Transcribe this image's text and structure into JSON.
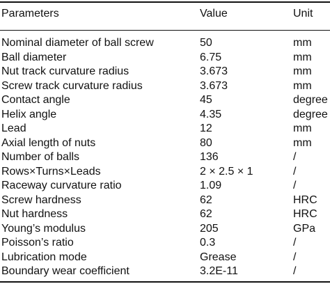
{
  "table": {
    "headers": {
      "parameter": "Parameters",
      "value": "Value",
      "unit": "Unit"
    },
    "rows": [
      {
        "parameter": "Nominal diameter of ball screw",
        "value": "50",
        "unit": "mm"
      },
      {
        "parameter": "Ball diameter",
        "value": "6.75",
        "unit": "mm"
      },
      {
        "parameter": "Nut track curvature radius",
        "value": "3.673",
        "unit": "mm"
      },
      {
        "parameter": "Screw track curvature radius",
        "value": "3.673",
        "unit": "mm"
      },
      {
        "parameter": "Contact angle",
        "value": "45",
        "unit": "degree"
      },
      {
        "parameter": "Helix angle",
        "value": "4.35",
        "unit": "degree"
      },
      {
        "parameter": "Lead",
        "value": "12",
        "unit": "mm"
      },
      {
        "parameter": "Axial length of nuts",
        "value": "80",
        "unit": "mm"
      },
      {
        "parameter": "Number of balls",
        "value": "136",
        "unit": "/"
      },
      {
        "parameter": "Rows×Turns×Leads",
        "value": "2 × 2.5 × 1",
        "unit": "/"
      },
      {
        "parameter": "Raceway curvature ratio",
        "value": "1.09",
        "unit": "/"
      },
      {
        "parameter": "Screw hardness",
        "value": "62",
        "unit": "HRC"
      },
      {
        "parameter": "Nut hardness",
        "value": "62",
        "unit": "HRC"
      },
      {
        "parameter": "Young’s modulus",
        "value": "205",
        "unit": "GPa"
      },
      {
        "parameter": "Poisson’s ratio",
        "value": "0.3",
        "unit": "/"
      },
      {
        "parameter": "Lubrication mode",
        "value": "Grease",
        "unit": "/"
      },
      {
        "parameter": "Boundary wear coefficient",
        "value": "3.2E-11",
        "unit": "/"
      }
    ]
  }
}
